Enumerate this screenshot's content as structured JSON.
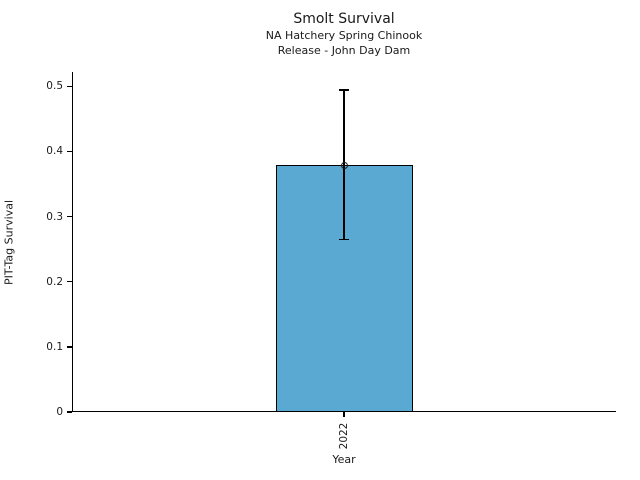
{
  "chart_data": {
    "type": "bar",
    "title": "Smolt Survival",
    "subtitle1": "NA Hatchery Spring Chinook",
    "subtitle2": "Release - John Day Dam",
    "xlabel": "Year",
    "ylabel": "PIT-Tag Survival",
    "categories": [
      "2022"
    ],
    "values": [
      0.379
    ],
    "error_low": [
      0.265
    ],
    "error_high": [
      0.494
    ],
    "yticks": [
      0,
      0.1,
      0.2,
      0.3,
      0.4,
      0.5
    ],
    "ytick_labels": [
      "0",
      "0.1",
      "0.2",
      "0.3",
      "0.4",
      "0.5"
    ],
    "ylim": [
      0,
      0.522
    ],
    "xtick_rotation": 90,
    "grid": false,
    "legend": "none",
    "bar_color": "#59A9D2",
    "bar_edge_color": "#000000",
    "error_color": "#000000",
    "marker": "open-circle",
    "axis_color": "#000000",
    "text_color": "#1a1a1a"
  }
}
